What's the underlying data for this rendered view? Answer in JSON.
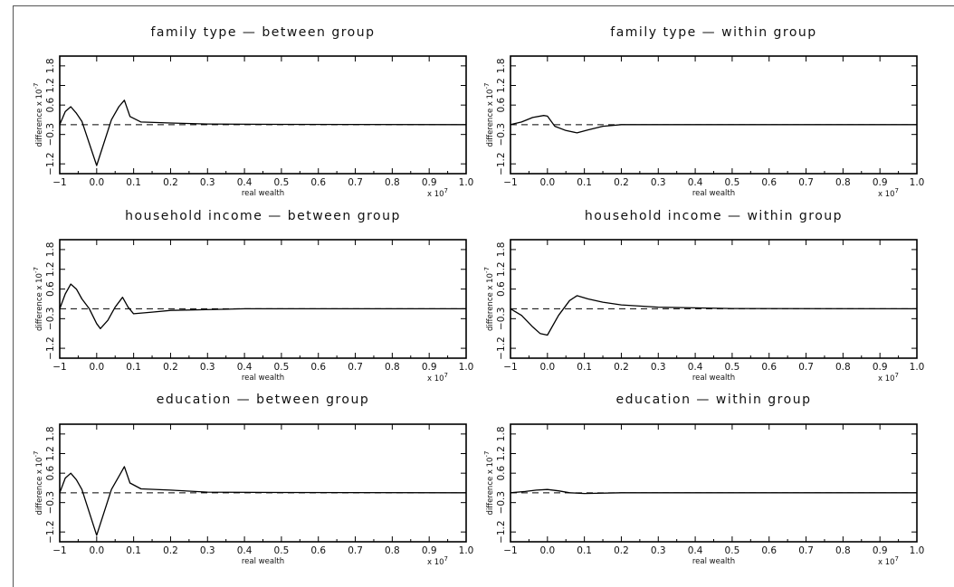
{
  "figure": {
    "exponent_note_x": "x 10",
    "exponent_note_x_power": "7",
    "ylabel_text": "difference x 10",
    "ylabel_power": "-7"
  },
  "chart_data": [
    {
      "type": "line",
      "title": "family type — between group",
      "xlabel": "real wealth",
      "ylabel": "difference x 10^-7",
      "xlim": [
        -0.1,
        1.0
      ],
      "ylim": [
        -1.5,
        2.1
      ],
      "x_ticks": [
        "−1",
        "0.0",
        "0.1",
        "0.2",
        "0.3",
        "0.4",
        "0.5",
        "0.6",
        "0.7",
        "0.8",
        "0.9",
        "1.0"
      ],
      "y_ticks": [
        "−1.2",
        "−0.3",
        "0.6",
        "1.2",
        "1.8"
      ],
      "reference_y": 0,
      "x": [
        -0.1,
        -0.085,
        -0.07,
        -0.055,
        -0.04,
        0.0,
        0.04,
        0.06,
        0.075,
        0.09,
        0.12,
        0.2,
        0.3,
        0.5,
        1.0
      ],
      "y": [
        0.0,
        0.4,
        0.55,
        0.35,
        0.1,
        -1.25,
        0.15,
        0.55,
        0.75,
        0.25,
        0.08,
        0.05,
        0.02,
        0.01,
        0.0
      ]
    },
    {
      "type": "line",
      "title": "family type — within group",
      "xlabel": "real wealth",
      "ylabel": "difference x 10^-7",
      "xlim": [
        -0.1,
        1.0
      ],
      "ylim": [
        -1.5,
        2.1
      ],
      "x_ticks": [
        "−1",
        "0.0",
        "0.1",
        "0.2",
        "0.3",
        "0.4",
        "0.5",
        "0.6",
        "0.7",
        "0.8",
        "0.9",
        "1.0"
      ],
      "y_ticks": [
        "−1.2",
        "−0.3",
        "0.6",
        "1.2",
        "1.8"
      ],
      "reference_y": 0,
      "x": [
        -0.1,
        -0.07,
        -0.04,
        -0.01,
        0.0,
        0.02,
        0.05,
        0.08,
        0.11,
        0.15,
        0.2,
        0.5,
        1.0
      ],
      "y": [
        0.0,
        0.08,
        0.22,
        0.28,
        0.26,
        -0.05,
        -0.18,
        -0.25,
        -0.16,
        -0.05,
        0.0,
        0.0,
        0.0
      ]
    },
    {
      "type": "line",
      "title": "household income — between group",
      "xlabel": "real wealth",
      "ylabel": "difference x 10^-7",
      "xlim": [
        -0.1,
        1.0
      ],
      "ylim": [
        -1.5,
        2.1
      ],
      "x_ticks": [
        "−1",
        "0.0",
        "0.1",
        "0.2",
        "0.3",
        "0.4",
        "0.5",
        "0.6",
        "0.7",
        "0.8",
        "0.9",
        "1.0"
      ],
      "y_ticks": [
        "−1.2",
        "−0.3",
        "0.6",
        "1.2",
        "1.8"
      ],
      "reference_y": 0,
      "x": [
        -0.1,
        -0.085,
        -0.07,
        -0.055,
        -0.04,
        -0.02,
        0.0,
        0.01,
        0.03,
        0.05,
        0.07,
        0.085,
        0.1,
        0.15,
        0.2,
        0.4,
        1.0
      ],
      "y": [
        0.0,
        0.45,
        0.75,
        0.6,
        0.3,
        0.0,
        -0.45,
        -0.6,
        -0.35,
        0.05,
        0.35,
        0.05,
        -0.15,
        -0.1,
        -0.05,
        0.0,
        0.0
      ]
    },
    {
      "type": "line",
      "title": "household income — within group",
      "xlabel": "real wealth",
      "ylabel": "difference x 10^-7",
      "xlim": [
        -0.1,
        1.0
      ],
      "ylim": [
        -1.5,
        2.1
      ],
      "x_ticks": [
        "−1",
        "0.0",
        "0.1",
        "0.2",
        "0.3",
        "0.4",
        "0.5",
        "0.6",
        "0.7",
        "0.8",
        "0.9",
        "1.0"
      ],
      "y_ticks": [
        "−1.2",
        "−0.3",
        "0.6",
        "1.2",
        "1.8"
      ],
      "reference_y": 0,
      "x": [
        -0.1,
        -0.07,
        -0.04,
        -0.02,
        0.0,
        0.03,
        0.06,
        0.08,
        0.11,
        0.15,
        0.2,
        0.3,
        0.5,
        1.0
      ],
      "y": [
        0.0,
        -0.2,
        -0.55,
        -0.75,
        -0.8,
        -0.2,
        0.25,
        0.4,
        0.3,
        0.2,
        0.12,
        0.05,
        0.01,
        0.0
      ]
    },
    {
      "type": "line",
      "title": "education — between group",
      "xlabel": "real wealth",
      "ylabel": "difference x 10^-7",
      "xlim": [
        -0.1,
        1.0
      ],
      "ylim": [
        -1.5,
        2.1
      ],
      "x_ticks": [
        "−1",
        "0.0",
        "0.1",
        "0.2",
        "0.3",
        "0.4",
        "0.5",
        "0.6",
        "0.7",
        "0.8",
        "0.9",
        "1.0"
      ],
      "y_ticks": [
        "−1.2",
        "−0.3",
        "0.6",
        "1.2",
        "1.8"
      ],
      "reference_y": 0,
      "x": [
        -0.1,
        -0.085,
        -0.07,
        -0.055,
        -0.04,
        0.0,
        0.04,
        0.06,
        0.075,
        0.09,
        0.12,
        0.2,
        0.3,
        0.5,
        1.0
      ],
      "y": [
        0.0,
        0.45,
        0.6,
        0.4,
        0.1,
        -1.3,
        0.1,
        0.5,
        0.8,
        0.3,
        0.12,
        0.08,
        0.02,
        0.01,
        0.0
      ]
    },
    {
      "type": "line",
      "title": "education — within group",
      "xlabel": "real wealth",
      "ylabel": "difference x 10^-7",
      "xlim": [
        -0.1,
        1.0
      ],
      "ylim": [
        -1.5,
        2.1
      ],
      "x_ticks": [
        "−1",
        "0.0",
        "0.1",
        "0.2",
        "0.3",
        "0.4",
        "0.5",
        "0.6",
        "0.7",
        "0.8",
        "0.9",
        "1.0"
      ],
      "y_ticks": [
        "−1.2",
        "−0.3",
        "0.6",
        "1.2",
        "1.8"
      ],
      "reference_y": 0,
      "x": [
        -0.1,
        -0.06,
        -0.03,
        0.0,
        0.03,
        0.06,
        0.1,
        0.2,
        1.0
      ],
      "y": [
        0.0,
        0.04,
        0.08,
        0.1,
        0.06,
        0.0,
        -0.02,
        0.0,
        0.0
      ]
    }
  ]
}
